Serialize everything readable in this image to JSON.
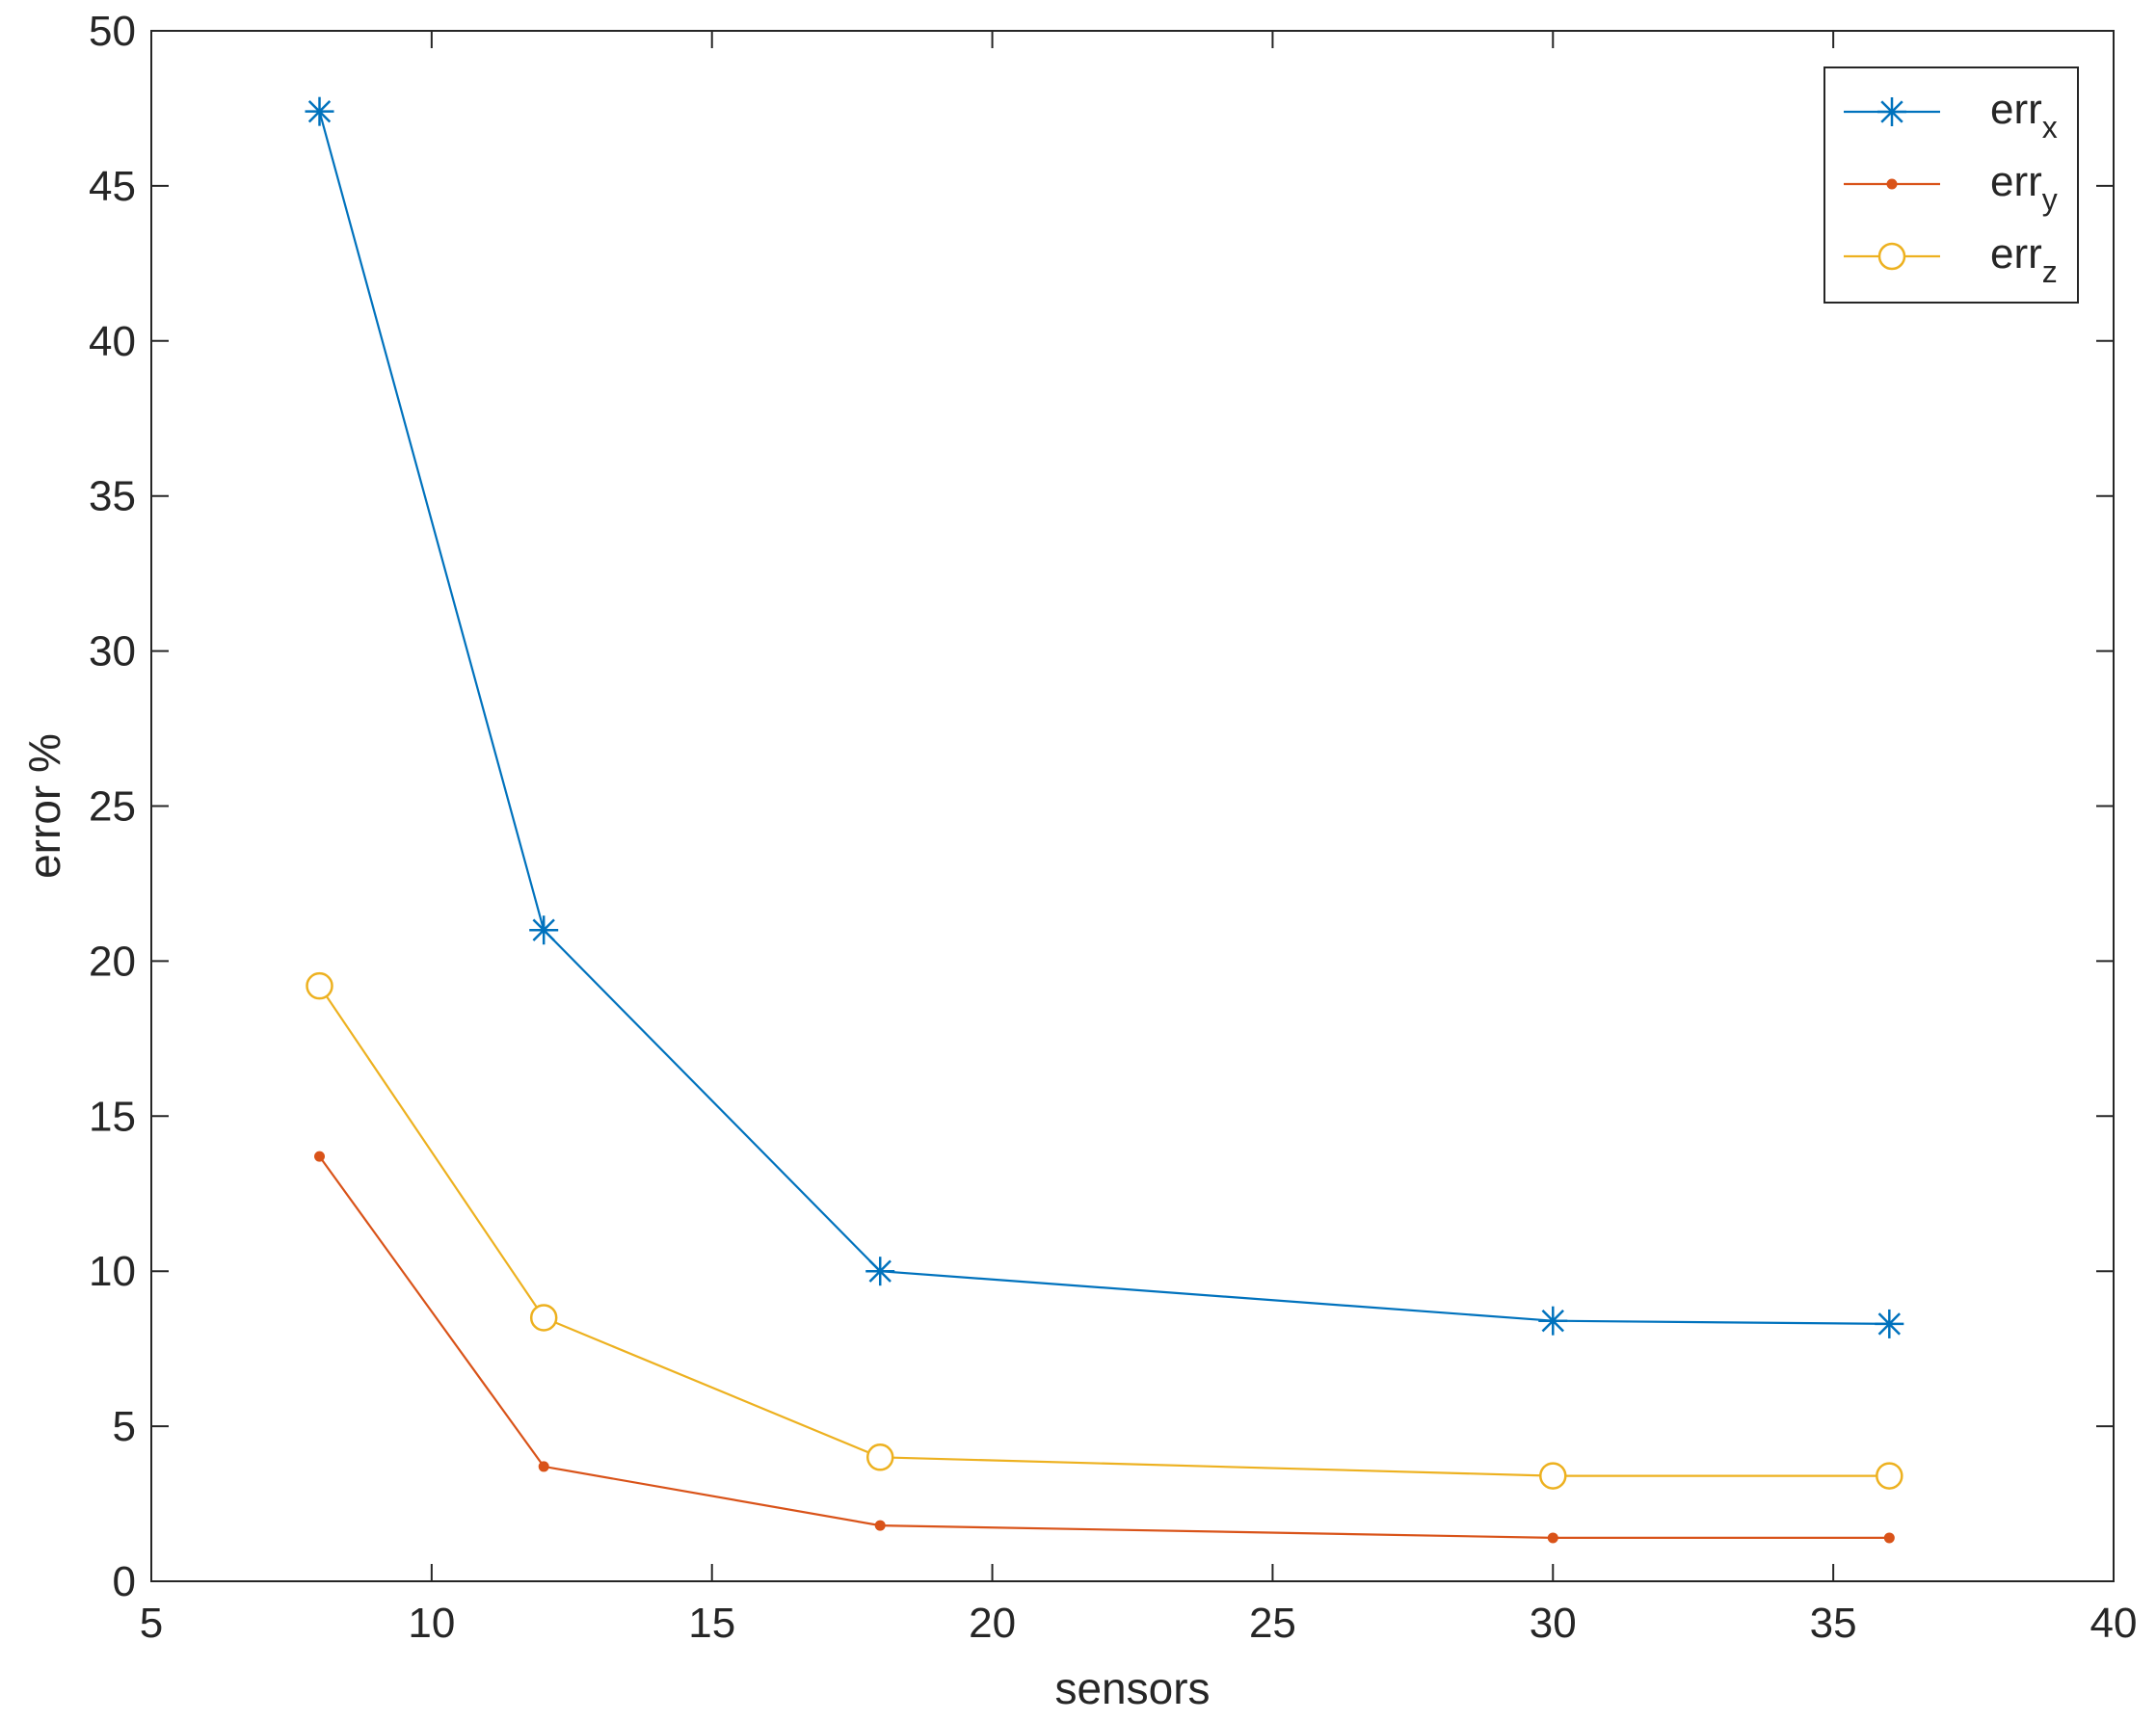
{
  "chart_data": {
    "type": "line",
    "title": "",
    "xlabel": "sensors",
    "ylabel": "error %",
    "xlim": [
      5,
      40
    ],
    "ylim": [
      0,
      50
    ],
    "xticks": [
      5,
      10,
      15,
      20,
      25,
      30,
      35,
      40
    ],
    "yticks": [
      0,
      5,
      10,
      15,
      20,
      25,
      30,
      35,
      40,
      45,
      50
    ],
    "x": [
      8,
      12,
      18,
      30,
      36
    ],
    "grid": false,
    "legend_position": "top-right",
    "series": [
      {
        "name": "err",
        "subscript": "x",
        "values": [
          47.4,
          21.0,
          10.0,
          8.4,
          8.3
        ],
        "color": "#0072BD",
        "marker": "asterisk"
      },
      {
        "name": "err",
        "subscript": "y",
        "values": [
          13.7,
          3.7,
          1.8,
          1.4,
          1.4
        ],
        "color": "#D95319",
        "marker": "dot"
      },
      {
        "name": "err",
        "subscript": "z",
        "values": [
          19.2,
          8.5,
          4.0,
          3.4,
          3.4
        ],
        "color": "#EDB120",
        "marker": "circle"
      }
    ]
  }
}
